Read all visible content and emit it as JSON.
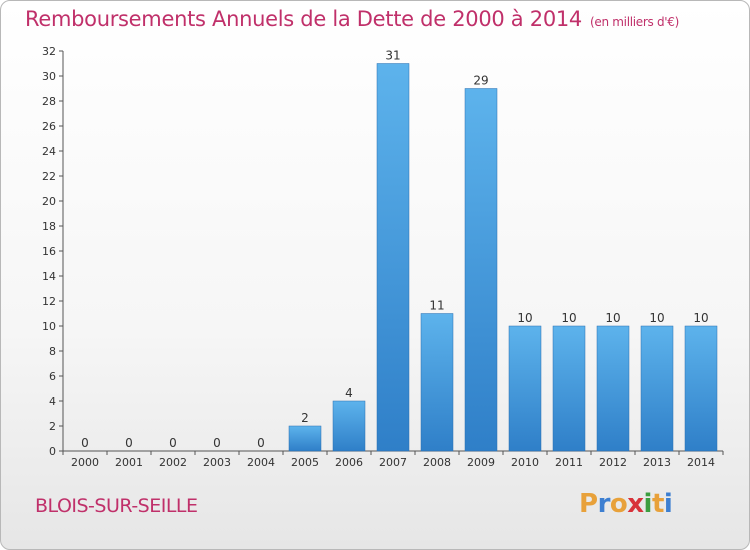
{
  "title": "Remboursements Annuels de la Dette de 2000 à 2014",
  "subtitle": "(en milliers d'€)",
  "commune": "BLOIS-SUR-SEILLE",
  "logo": {
    "letters": [
      "P",
      "r",
      "o",
      "x",
      "i",
      "t",
      "i"
    ],
    "colors": [
      "#e8a13a",
      "#3d7fd1",
      "#e8a13a",
      "#d8323a",
      "#3d9e40",
      "#e8a13a",
      "#3d7fd1"
    ]
  },
  "chart_data": {
    "type": "bar",
    "title": "Remboursements Annuels de la Dette de 2000 à 2014",
    "subtitle": "(en milliers d'€)",
    "categories": [
      "2000",
      "2001",
      "2002",
      "2003",
      "2004",
      "2005",
      "2006",
      "2007",
      "2008",
      "2009",
      "2010",
      "2011",
      "2012",
      "2013",
      "2014"
    ],
    "values": [
      0,
      0,
      0,
      0,
      0,
      2,
      4,
      31,
      11,
      29,
      10,
      10,
      10,
      10,
      10
    ],
    "ylim": [
      0,
      32
    ],
    "yticks": [
      0,
      2,
      4,
      6,
      8,
      10,
      12,
      14,
      16,
      18,
      20,
      22,
      24,
      26,
      28,
      30,
      32
    ],
    "bar_color": "#4a9ee0",
    "grid": false,
    "legend": "none"
  }
}
